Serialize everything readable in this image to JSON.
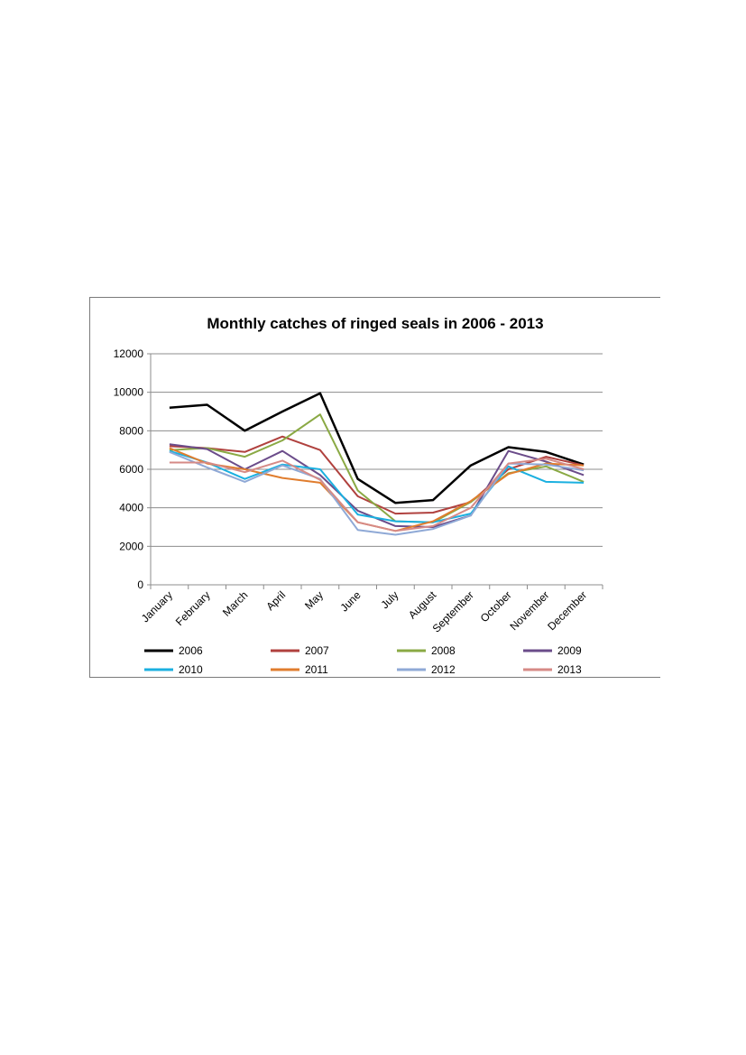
{
  "chart_data": {
    "type": "line",
    "title": "Monthly catches of ringed seals in 2006 - 2013",
    "xlabel": "",
    "ylabel": "",
    "ylim": [
      0,
      12000
    ],
    "yticks": [
      0,
      2000,
      4000,
      6000,
      8000,
      10000,
      12000
    ],
    "grid": true,
    "legend_position": "bottom",
    "categories": [
      "January",
      "February",
      "March",
      "April",
      "May",
      "June",
      "July",
      "August",
      "September",
      "October",
      "November",
      "December"
    ],
    "series": [
      {
        "name": "2006",
        "color": "#000000",
        "values": [
          9200,
          9350,
          8000,
          9000,
          9950,
          5500,
          4250,
          4400,
          6200,
          7150,
          6900,
          6250
        ]
      },
      {
        "name": "2007",
        "color": "#b0413e",
        "values": [
          7200,
          7100,
          6900,
          7700,
          7000,
          4600,
          3700,
          3750,
          4300,
          6000,
          6650,
          6200
        ]
      },
      {
        "name": "2008",
        "color": "#8aa944",
        "values": [
          7000,
          7100,
          6650,
          7500,
          8850,
          4900,
          3300,
          3250,
          4300,
          5800,
          6150,
          5350
        ]
      },
      {
        "name": "2009",
        "color": "#6b4c8a",
        "values": [
          7300,
          7050,
          6000,
          6950,
          5700,
          3850,
          3050,
          3000,
          3600,
          6950,
          6400,
          5700
        ]
      },
      {
        "name": "2010",
        "color": "#1bb0e0",
        "values": [
          6950,
          6350,
          5500,
          6250,
          6000,
          3650,
          3300,
          3250,
          3700,
          6150,
          5350,
          5300
        ]
      },
      {
        "name": "2011",
        "color": "#e07d2e",
        "values": [
          7100,
          6300,
          6000,
          5550,
          5300,
          3250,
          2800,
          3300,
          4350,
          5750,
          6300,
          6200
        ]
      },
      {
        "name": "2012",
        "color": "#8fa9d6",
        "values": [
          6900,
          6100,
          5350,
          6200,
          5500,
          2850,
          2600,
          2900,
          3600,
          6300,
          6250,
          5950
        ]
      },
      {
        "name": "2013",
        "color": "#d68a86",
        "values": [
          6350,
          6350,
          5850,
          6450,
          5450,
          3250,
          2800,
          3050,
          4000,
          6300,
          6550,
          6000
        ]
      }
    ]
  }
}
